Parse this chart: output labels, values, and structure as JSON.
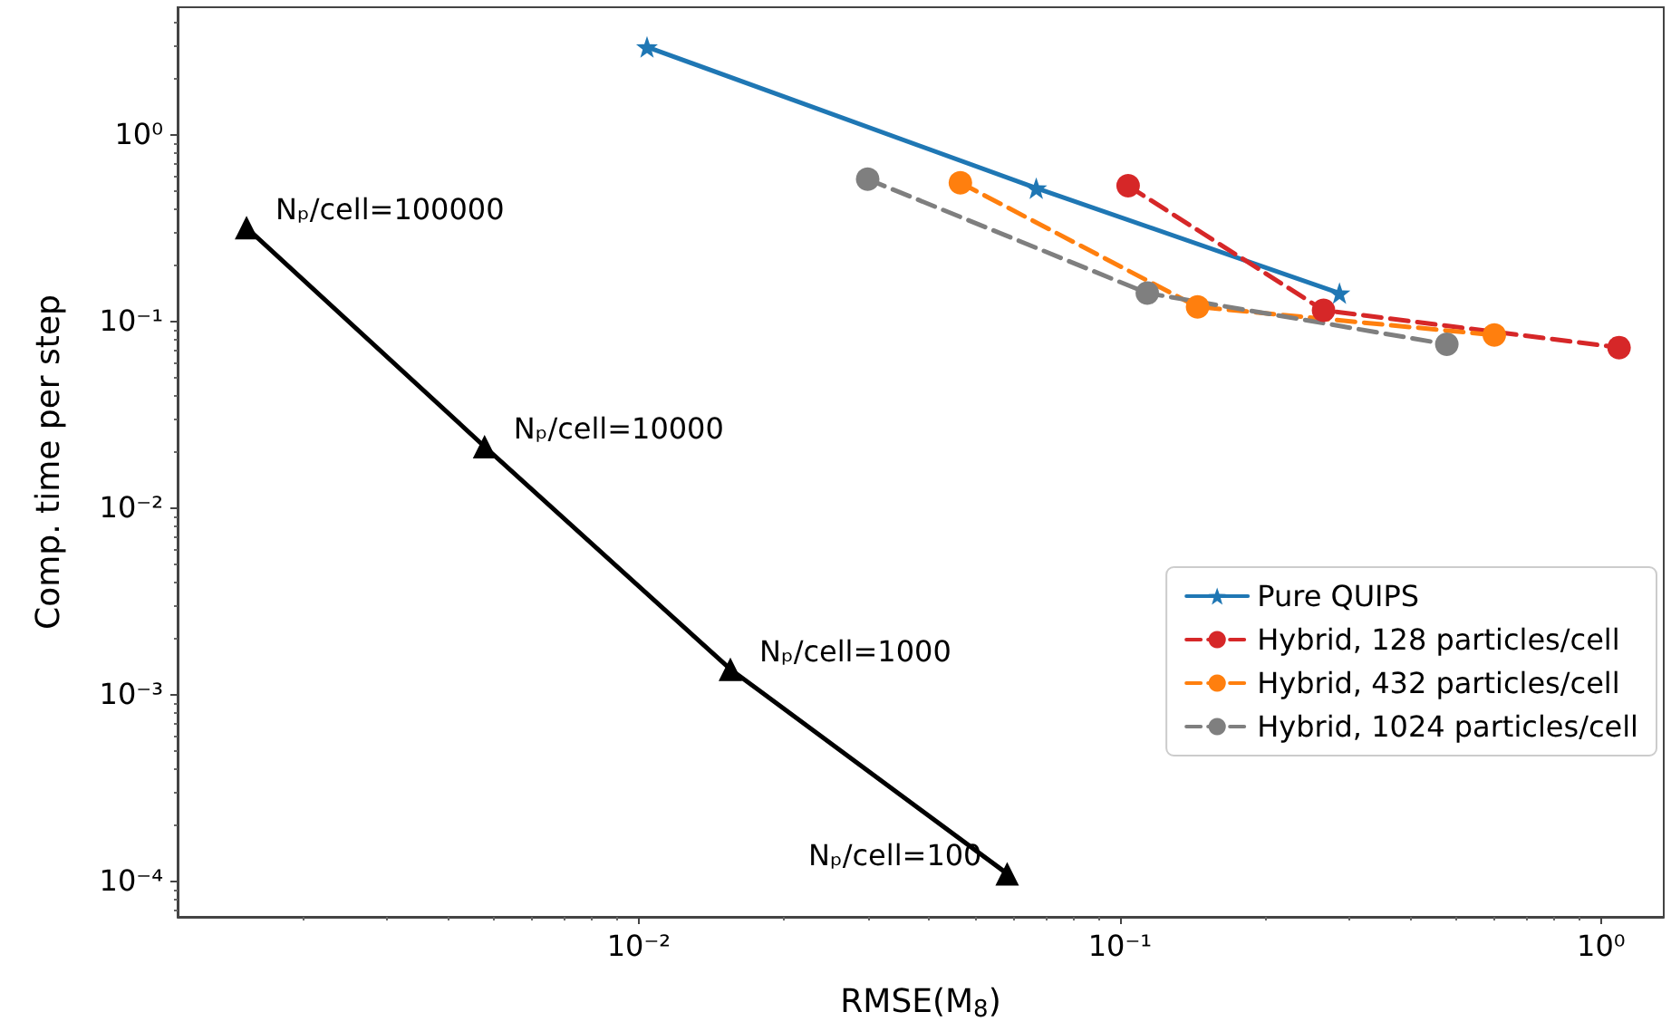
{
  "chart_data": {
    "type": "line",
    "xlabel": "RMSE(M$_{8}$)",
    "ylabel": "Comp. time per step",
    "log": "xy",
    "xlim": [
      0.0011,
      1.35
    ],
    "ylim": [
      6.4e-05,
      4.8
    ],
    "xticks": [
      {
        "value": 0.01,
        "label": "10⁻²"
      },
      {
        "value": 0.1,
        "label": "10⁻¹"
      },
      {
        "value": 1,
        "label": "10⁰"
      }
    ],
    "yticks": [
      {
        "value": 0.0001,
        "label": "10⁻⁴"
      },
      {
        "value": 0.001,
        "label": "10⁻³"
      },
      {
        "value": 0.01,
        "label": "10⁻²"
      },
      {
        "value": 0.1,
        "label": "10⁻¹"
      },
      {
        "value": 1,
        "label": "10⁰"
      }
    ],
    "grid": false,
    "legend": "bottom right",
    "series": [
      {
        "name": "Pure QUIPS",
        "color": "#1f77b4",
        "marker": "star",
        "line_style": "solid",
        "x": [
          0.0104,
          0.067,
          0.286
        ],
        "values": [
          2.94,
          0.515,
          0.141
        ]
      },
      {
        "name": "Hybrid, 128 particles/cell",
        "color": "#d62728",
        "marker": "circle",
        "line_style": "dashed",
        "x": [
          0.104,
          0.265,
          1.09
        ],
        "values": [
          0.53,
          0.114,
          0.072
        ]
      },
      {
        "name": "Hybrid, 432 particles/cell",
        "color": "#ff7f0e",
        "marker": "circle",
        "line_style": "dashed",
        "x": [
          0.0466,
          0.145,
          0.6
        ],
        "values": [
          0.55,
          0.119,
          0.084
        ]
      },
      {
        "name": "Hybrid, 1024 particles/cell",
        "color": "#7f7f7f",
        "marker": "circle",
        "line_style": "dashed",
        "x": [
          0.0299,
          0.114,
          0.478
        ],
        "values": [
          0.575,
          0.141,
          0.075
        ]
      },
      {
        "color": "#000000",
        "marker": "triangle",
        "line_style": "solid",
        "x": [
          0.00153,
          0.00478,
          0.0155,
          0.0583
        ],
        "values": [
          0.316,
          0.0212,
          0.00136,
          0.000109
        ]
      }
    ],
    "annotations": [
      {
        "text": "Nₚ/cell=100000",
        "x": 0.00153,
        "y": 0.316
      },
      {
        "text": "Nₚ/cell=10000",
        "x": 0.00478,
        "y": 0.0212
      },
      {
        "text": "Nₚ/cell=1000",
        "x": 0.0155,
        "y": 0.00136
      },
      {
        "text": "Nₚ/cell=100",
        "x": 0.0583,
        "y": 0.000109
      }
    ]
  }
}
